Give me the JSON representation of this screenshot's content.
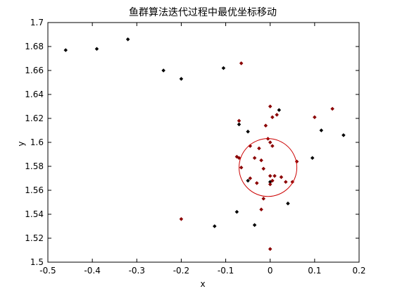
{
  "chart_data": {
    "type": "scatter",
    "title": "鱼群算法迭代过程中最优坐标移动",
    "xlabel": "x",
    "ylabel": "y",
    "xlim": [
      -0.5,
      0.2
    ],
    "ylim": [
      1.5,
      1.7
    ],
    "xticks": [
      -0.5,
      -0.4,
      -0.3,
      -0.2,
      -0.1,
      0,
      0.1,
      0.2
    ],
    "xtick_labels": [
      "-0.5",
      "-0.4",
      "-0.3",
      "-0.2",
      "-0.1",
      "0",
      "0.1",
      "0.2"
    ],
    "yticks": [
      1.5,
      1.52,
      1.54,
      1.56,
      1.58,
      1.6,
      1.62,
      1.64,
      1.66,
      1.68,
      1.7
    ],
    "ytick_labels": [
      "1.5",
      "1.52",
      "1.54",
      "1.56",
      "1.58",
      "1.6",
      "1.62",
      "1.64",
      "1.66",
      "1.68",
      "1.7"
    ],
    "grid": false,
    "colors": {
      "black_points": "#000000",
      "red_points": "#8b0000",
      "circle": "#cc0000"
    },
    "series": [
      {
        "color": "#000000",
        "points": [
          [
            -0.46,
            1.677
          ],
          [
            -0.39,
            1.678
          ],
          [
            -0.32,
            1.686
          ],
          [
            -0.24,
            1.66
          ],
          [
            -0.2,
            1.653
          ],
          [
            -0.105,
            1.662
          ],
          [
            -0.07,
            1.615
          ],
          [
            -0.05,
            1.609
          ],
          [
            0.02,
            1.627
          ],
          [
            0.115,
            1.61
          ],
          [
            0.165,
            1.606
          ],
          [
            0.095,
            1.587
          ],
          [
            0.04,
            1.549
          ],
          [
            -0.075,
            1.542
          ],
          [
            -0.035,
            1.531
          ],
          [
            -0.125,
            1.53
          ],
          [
            0.0,
            1.567
          ],
          [
            -0.05,
            1.568
          ]
        ]
      },
      {
        "color": "#8b0000",
        "points": [
          [
            -0.065,
            1.666
          ],
          [
            0.0,
            1.63
          ],
          [
            0.005,
            1.621
          ],
          [
            0.015,
            1.623
          ],
          [
            -0.01,
            1.614
          ],
          [
            0.1,
            1.621
          ],
          [
            0.14,
            1.628
          ],
          [
            -0.07,
            1.618
          ],
          [
            -0.005,
            1.603
          ],
          [
            0.0,
            1.6
          ],
          [
            0.005,
            1.597
          ],
          [
            -0.045,
            1.597
          ],
          [
            -0.025,
            1.595
          ],
          [
            -0.02,
            1.585
          ],
          [
            -0.035,
            1.587
          ],
          [
            -0.075,
            1.588
          ],
          [
            -0.07,
            1.587
          ],
          [
            -0.065,
            1.579
          ],
          [
            -0.015,
            1.578
          ],
          [
            0.06,
            1.584
          ],
          [
            0.01,
            1.572
          ],
          [
            0.025,
            1.571
          ],
          [
            0.035,
            1.567
          ],
          [
            0.05,
            1.567
          ],
          [
            -0.045,
            1.57
          ],
          [
            -0.03,
            1.566
          ],
          [
            0.0,
            1.565
          ],
          [
            0.005,
            1.568
          ],
          [
            0.0,
            1.572
          ],
          [
            -0.015,
            1.553
          ],
          [
            -0.02,
            1.544
          ],
          [
            0.0,
            1.511
          ],
          [
            -0.2,
            1.536
          ]
        ]
      }
    ],
    "circle": {
      "cx": -0.005,
      "cy": 1.579,
      "r": 0.065
    }
  }
}
